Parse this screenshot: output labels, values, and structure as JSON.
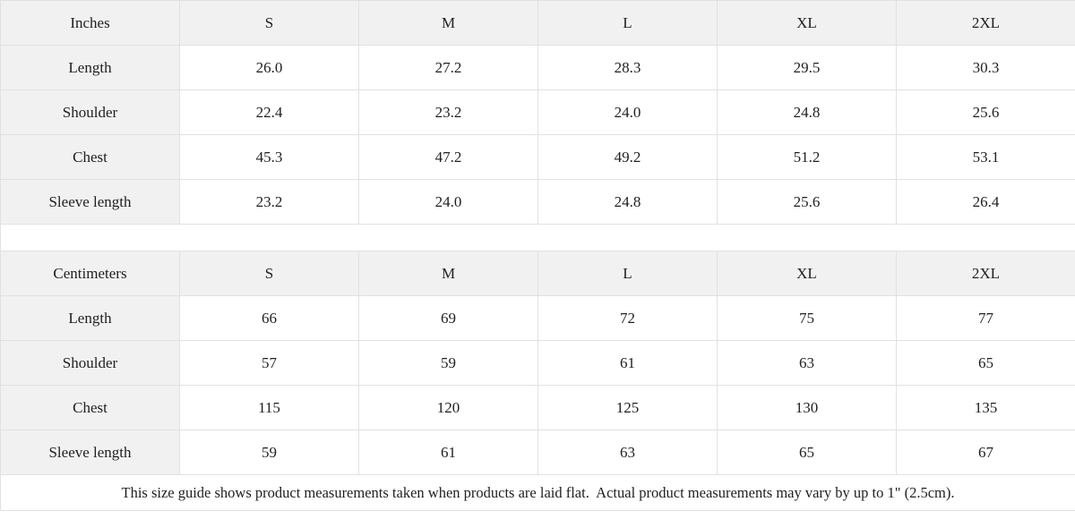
{
  "page": {
    "background": "#ffffff",
    "border_color": "#e1e1e1",
    "header_bg": "#f1f1f1",
    "text_color": "#1f1f1f"
  },
  "size_guide": {
    "tables": [
      {
        "unit": "Inches",
        "columns": [
          "S",
          "M",
          "L",
          "XL",
          "2XL"
        ],
        "rows": [
          {
            "label": "Length",
            "values": [
              "26.0",
              "27.2",
              "28.3",
              "29.5",
              "30.3"
            ]
          },
          {
            "label": "Shoulder",
            "values": [
              "22.4",
              "23.2",
              "24.0",
              "24.8",
              "25.6"
            ]
          },
          {
            "label": "Chest",
            "values": [
              "45.3",
              "47.2",
              "49.2",
              "51.2",
              "53.1"
            ]
          },
          {
            "label": "Sleeve length",
            "values": [
              "23.2",
              "24.0",
              "24.8",
              "25.6",
              "26.4"
            ]
          }
        ]
      },
      {
        "unit": "Centimeters",
        "columns": [
          "S",
          "M",
          "L",
          "XL",
          "2XL"
        ],
        "rows": [
          {
            "label": "Length",
            "values": [
              "66",
              "69",
              "72",
              "75",
              "77"
            ]
          },
          {
            "label": "Shoulder",
            "values": [
              "57",
              "59",
              "61",
              "63",
              "65"
            ]
          },
          {
            "label": "Chest",
            "values": [
              "115",
              "120",
              "125",
              "130",
              "135"
            ]
          },
          {
            "label": "Sleeve length",
            "values": [
              "59",
              "61",
              "63",
              "65",
              "67"
            ]
          }
        ]
      }
    ],
    "footnote": "This size guide shows product measurements taken when products are laid flat.  Actual product measurements may vary by up to 1\" (2.5cm)."
  }
}
